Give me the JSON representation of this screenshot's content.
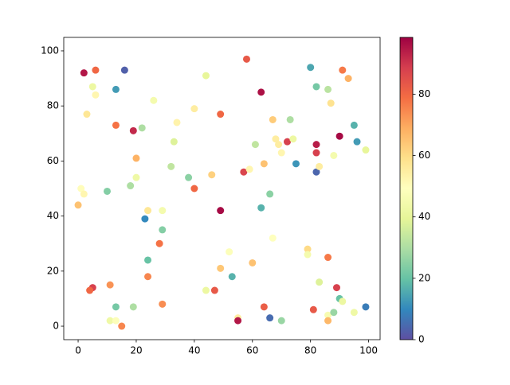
{
  "chart_data": {
    "type": "scatter",
    "x": [
      2,
      6,
      16,
      5,
      6,
      13,
      3,
      13,
      19,
      22,
      26,
      20,
      10,
      20,
      18,
      1,
      2,
      0,
      24,
      29,
      23,
      29,
      28,
      24,
      24,
      11,
      5,
      4,
      13,
      19,
      11,
      13,
      15,
      29,
      32,
      33,
      34,
      38,
      40,
      40,
      44,
      49,
      46,
      49,
      44,
      47,
      49,
      52,
      53,
      55,
      55,
      58,
      63,
      57,
      59,
      61,
      64,
      67,
      68,
      69,
      70,
      72,
      73,
      74,
      66,
      63,
      67,
      60,
      64,
      66,
      70,
      75,
      80,
      82,
      86,
      87,
      82,
      82,
      82,
      83,
      88,
      91,
      93,
      90,
      95,
      96,
      99,
      79,
      79,
      86,
      83,
      89,
      90,
      91,
      81,
      86,
      86,
      88,
      95,
      99
    ],
    "y": [
      92,
      93,
      93,
      87,
      84,
      86,
      77,
      73,
      71,
      72,
      82,
      61,
      49,
      54,
      51,
      50,
      48,
      44,
      42,
      42,
      39,
      35,
      30,
      24,
      18,
      15,
      14,
      13,
      7,
      7,
      2,
      2,
      0,
      8,
      58,
      67,
      74,
      54,
      50,
      79,
      91,
      77,
      55,
      42,
      13,
      13,
      21,
      27,
      18,
      3,
      2,
      97,
      85,
      56,
      57,
      66,
      59,
      75,
      68,
      66,
      63,
      67,
      75,
      68,
      48,
      43,
      32,
      23,
      7,
      3,
      2,
      59,
      94,
      87,
      86,
      81,
      66,
      63,
      56,
      58,
      62,
      93,
      90,
      69,
      73,
      67,
      64,
      28,
      26,
      25,
      16,
      14,
      10,
      9,
      6,
      4,
      2,
      5,
      5,
      7
    ],
    "c": [
      95,
      80,
      3,
      42,
      52,
      13,
      57,
      78,
      92,
      30,
      45,
      68,
      24,
      43,
      30,
      50,
      52,
      65,
      57,
      45,
      10,
      24,
      78,
      20,
      75,
      73,
      88,
      80,
      22,
      30,
      43,
      48,
      75,
      74,
      33,
      38,
      53,
      25,
      80,
      55,
      40,
      80,
      62,
      97,
      42,
      83,
      64,
      48,
      17,
      55,
      95,
      83,
      96,
      87,
      52,
      33,
      65,
      63,
      55,
      55,
      52,
      88,
      30,
      42,
      25,
      17,
      49,
      65,
      82,
      5,
      27,
      12,
      15,
      22,
      32,
      58,
      94,
      88,
      4,
      55,
      45,
      77,
      68,
      97,
      17,
      13,
      40,
      60,
      45,
      77,
      38,
      88,
      20,
      42,
      83,
      46,
      67,
      27,
      43,
      8
    ],
    "xlim": [
      -4.95,
      103.95
    ],
    "xticks": [
      0,
      20,
      40,
      60,
      80,
      100
    ],
    "ylim": [
      -4.9,
      104.9
    ],
    "yticks": [
      0,
      20,
      40,
      60,
      80,
      100
    ],
    "clim": [
      0,
      98.5
    ],
    "cticks": [
      0,
      20,
      40,
      60,
      80
    ],
    "colorscale": [
      "#5e4fa2",
      "#3288bd",
      "#66c2a5",
      "#abdda4",
      "#e6f598",
      "#ffffbf",
      "#fee08b",
      "#fdae61",
      "#f46d43",
      "#d53e4f",
      "#9e0142"
    ]
  }
}
